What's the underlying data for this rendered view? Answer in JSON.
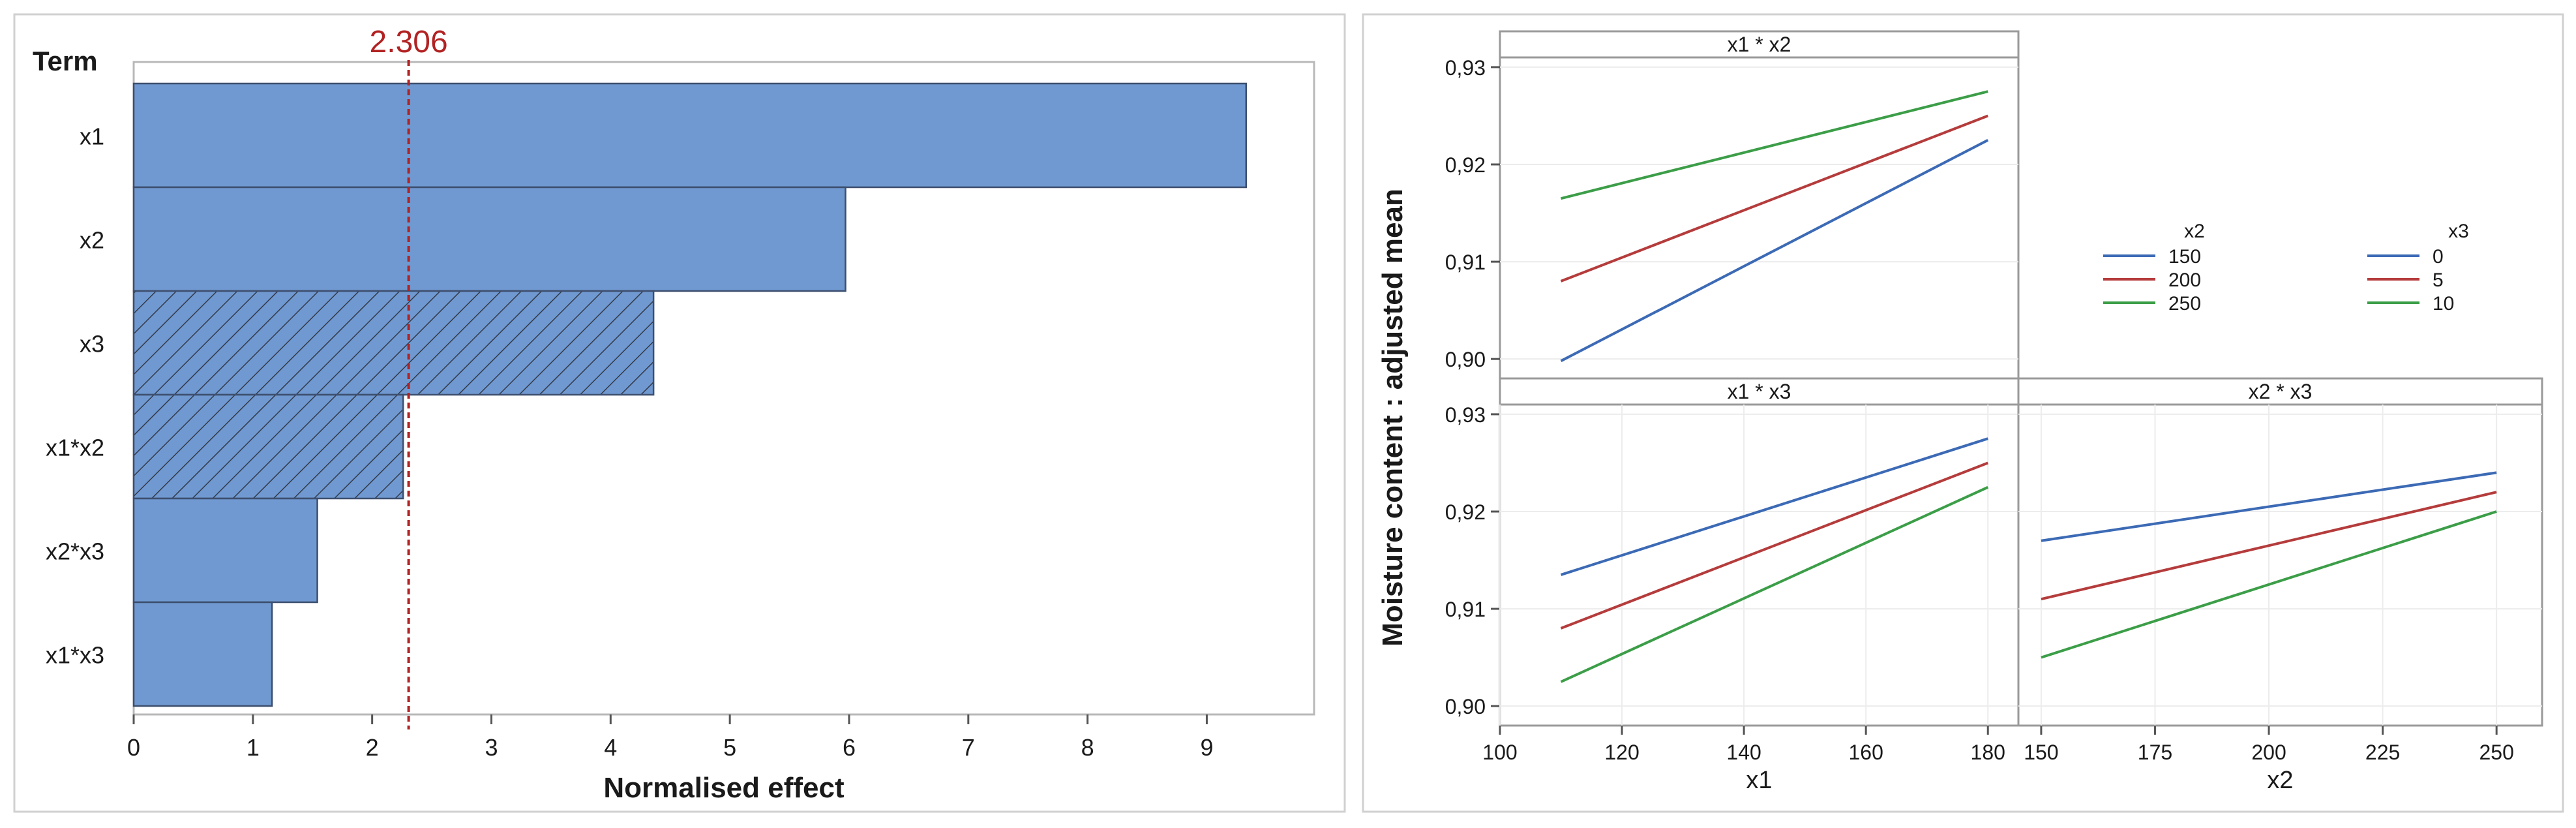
{
  "chart_data": [
    {
      "type": "bar",
      "orientation": "horizontal",
      "title": "",
      "ylabel": "Term",
      "xlabel": "Normalised effect",
      "categories": [
        "x1",
        "x2",
        "x3",
        "x1*x2",
        "x2*x3",
        "x1*x3"
      ],
      "values": [
        9.33,
        5.97,
        4.36,
        2.26,
        1.54,
        1.16
      ],
      "significant_hatched": [
        false,
        false,
        true,
        true,
        false,
        false
      ],
      "xlim": [
        0,
        9.9
      ],
      "xticks": [
        "0",
        "1",
        "2",
        "3",
        "4",
        "5",
        "6",
        "7",
        "8",
        "9"
      ],
      "reference_line": {
        "value": 2.306,
        "label": "2.306",
        "color": "#b22222"
      },
      "bar_color": "#7099d1",
      "grid": false
    },
    {
      "type": "line",
      "title": "",
      "ylabel": "Moisture content : adjusted mean",
      "ylim": [
        0.898,
        0.931
      ],
      "yticks": [
        "0,90",
        "0,91",
        "0,92",
        "0,93"
      ],
      "colors": [
        "#3c6ab5",
        "#b53c3c",
        "#3c9e48"
      ],
      "grid": true,
      "panels": [
        {
          "title": "x1 * x2",
          "xlabel": "",
          "x_range": [
            100,
            185
          ],
          "x": [
            110,
            180
          ],
          "series": [
            {
              "name": "150",
              "values": [
                0.8998,
                0.9225
              ]
            },
            {
              "name": "200",
              "values": [
                0.908,
                0.925
              ]
            },
            {
              "name": "250",
              "values": [
                0.9165,
                0.9275
              ]
            }
          ]
        },
        {
          "title": "x1 * x3",
          "xlabel": "x1",
          "x_range": [
            100,
            185
          ],
          "x": [
            110,
            180
          ],
          "xticks": [
            "100",
            "120",
            "140",
            "160",
            "180"
          ],
          "series": [
            {
              "name": "0",
              "values": [
                0.9135,
                0.9275
              ]
            },
            {
              "name": "5",
              "values": [
                0.908,
                0.925
              ]
            },
            {
              "name": "10",
              "values": [
                0.9025,
                0.9225
              ]
            }
          ]
        },
        {
          "title": "x2 * x3",
          "xlabel": "x2",
          "x_range": [
            145,
            260
          ],
          "x": [
            150,
            250
          ],
          "xticks": [
            "150",
            "175",
            "200",
            "225",
            "250"
          ],
          "series": [
            {
              "name": "0",
              "values": [
                0.917,
                0.924
              ]
            },
            {
              "name": "5",
              "values": [
                0.911,
                0.922
              ]
            },
            {
              "name": "10",
              "values": [
                0.905,
                0.92
              ]
            }
          ]
        }
      ],
      "legends": [
        {
          "title": "x2",
          "entries": [
            "150",
            "200",
            "250"
          ],
          "placement": "top-right"
        },
        {
          "title": "x3",
          "entries": [
            "0",
            "5",
            "10"
          ],
          "placement": "top-right"
        }
      ]
    }
  ]
}
